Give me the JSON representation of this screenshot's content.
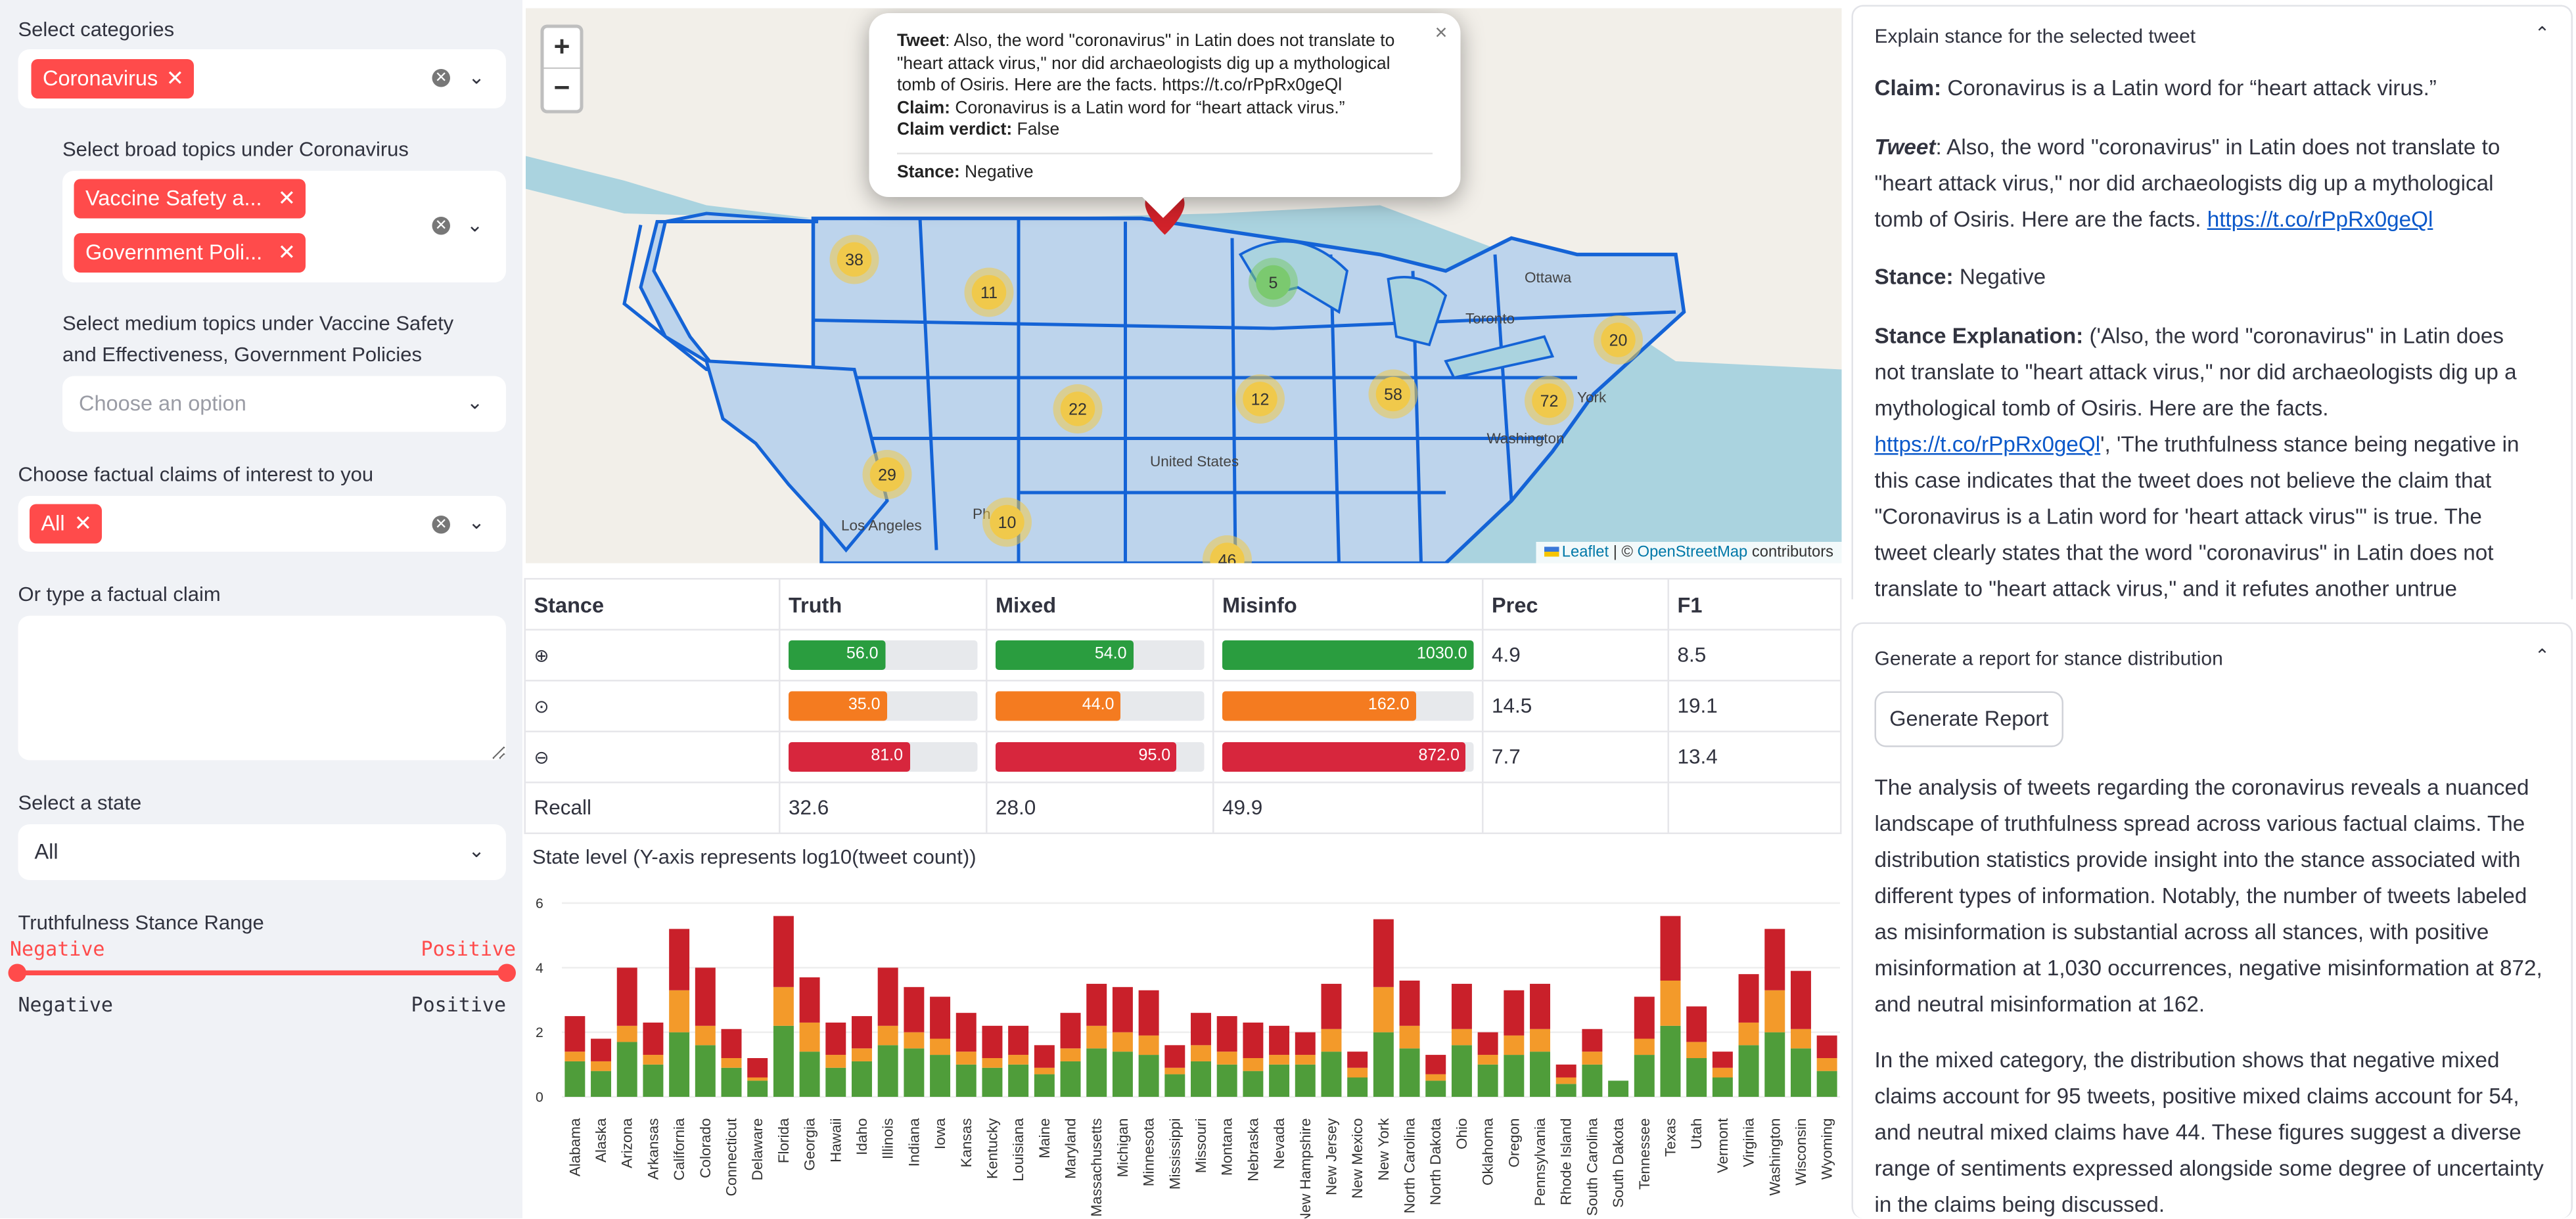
{
  "sidebar": {
    "categories_label": "Select categories",
    "categories_tags": [
      "Coronavirus"
    ],
    "broad_label": "Select broad topics under Coronavirus",
    "broad_tags": [
      "Vaccine Safety a...",
      "Government Poli..."
    ],
    "medium_label": "Select medium topics under Vaccine Safety and Effectiveness, Government Policies",
    "medium_placeholder": "Choose an option",
    "claims_label": "Choose factual claims of interest to you",
    "claims_tags": [
      "All"
    ],
    "type_claim_label": "Or type a factual claim",
    "type_claim_value": "",
    "state_label": "Select a state",
    "state_value": "All",
    "range_label": "Truthfulness Stance Range",
    "range_low_value": "Negative",
    "range_high_value": "Positive",
    "range_min_label": "Negative",
    "range_max_label": "Positive",
    "accent": "#ff4b4b"
  },
  "map": {
    "zoom_in": "+",
    "zoom_out": "−",
    "popup": {
      "tweet_key": "Tweet",
      "tweet": ": Also, the word \"coronavirus\" in Latin does not translate to \"heart attack virus,\" nor did archaeologists dig up a mythological tomb of Osiris. Here are the facts. https://t.co/rPpRx0geQl",
      "claim_key": "Claim:",
      "claim": " Coronavirus is a Latin word for “heart attack virus.”",
      "verdict_key": "Claim verdict:",
      "verdict": " False",
      "stance_key": "Stance:",
      "stance": " Negative",
      "close": "×"
    },
    "clusters": [
      {
        "label": "38",
        "color": "#f0c94b"
      },
      {
        "label": "11",
        "color": "#f0c94b"
      },
      {
        "label": "5",
        "color": "#7bc96f"
      },
      {
        "label": "22",
        "color": "#f0c94b"
      },
      {
        "label": "12",
        "color": "#f0c94b"
      },
      {
        "label": "58",
        "color": "#f0c94b"
      },
      {
        "label": "72",
        "color": "#f0c94b"
      },
      {
        "label": "20",
        "color": "#f0c94b"
      },
      {
        "label": "29",
        "color": "#f0c94b"
      },
      {
        "label": "10",
        "color": "#f0c94b"
      },
      {
        "label": "46",
        "color": "#f0c94b"
      }
    ],
    "place_labels": [
      "Ottawa",
      "Toronto",
      "United States",
      "Los Angeles",
      "Washington",
      "York",
      "Ph"
    ],
    "attribution": {
      "leaflet": "Leaflet",
      "sep": " | © ",
      "osm": "OpenStreetMap",
      "suffix": " contributors"
    }
  },
  "stance_table": {
    "headers": [
      "Stance",
      "Truth",
      "Mixed",
      "Misinfo",
      "Prec",
      "F1"
    ],
    "rows": [
      {
        "icon": "⊕",
        "cells": [
          {
            "value": "56.0",
            "fraction": 0.51,
            "color": "#2a9d3f"
          },
          {
            "value": "54.0",
            "fraction": 0.66,
            "color": "#2a9d3f"
          },
          {
            "value": "1030.0",
            "fraction": 1.0,
            "color": "#2a9d3f"
          }
        ],
        "prec": "4.9",
        "f1": "8.5"
      },
      {
        "icon": "⊙",
        "cells": [
          {
            "value": "35.0",
            "fraction": 0.52,
            "color": "#f47b20"
          },
          {
            "value": "44.0",
            "fraction": 0.6,
            "color": "#f47b20"
          },
          {
            "value": "162.0",
            "fraction": 0.77,
            "color": "#f47b20"
          }
        ],
        "prec": "14.5",
        "f1": "19.1"
      },
      {
        "icon": "⊖",
        "cells": [
          {
            "value": "81.0",
            "fraction": 0.64,
            "color": "#d7263d"
          },
          {
            "value": "95.0",
            "fraction": 0.87,
            "color": "#d7263d"
          },
          {
            "value": "872.0",
            "fraction": 0.97,
            "color": "#d7263d"
          }
        ],
        "prec": "7.7",
        "f1": "13.4"
      }
    ],
    "recall_label": "Recall",
    "recall": [
      "32.6",
      "28.0",
      "49.9"
    ]
  },
  "chart_data": {
    "type": "bar",
    "title": "State level (Y-axis represents log10(tweet count))",
    "ylim": [
      0,
      6
    ],
    "yticks": [
      "0",
      "2",
      "4",
      "6"
    ],
    "categories": [
      "Alabama",
      "Alaska",
      "Arizona",
      "Arkansas",
      "California",
      "Colorado",
      "Connecticut",
      "Delaware",
      "Florida",
      "Georgia",
      "Hawaii",
      "Idaho",
      "Illinois",
      "Indiana",
      "Iowa",
      "Kansas",
      "Kentucky",
      "Louisiana",
      "Maine",
      "Maryland",
      "Massachusetts",
      "Michigan",
      "Minnesota",
      "Mississippi",
      "Missouri",
      "Montana",
      "Nebraska",
      "Nevada",
      "New Hampshire",
      "New Jersey",
      "New Mexico",
      "New York",
      "North Carolina",
      "North Dakota",
      "Ohio",
      "Oklahoma",
      "Oregon",
      "Pennsylvania",
      "Rhode Island",
      "South Carolina",
      "South Dakota",
      "Tennessee",
      "Texas",
      "Utah",
      "Vermont",
      "Virginia",
      "Washington",
      "Wisconsin",
      "Wyoming"
    ],
    "series": [
      {
        "color": "#4f9d3a",
        "values": [
          1.1,
          0.8,
          1.7,
          1.0,
          2.0,
          1.6,
          0.9,
          0.5,
          2.2,
          1.4,
          0.9,
          1.1,
          1.6,
          1.5,
          1.3,
          1.0,
          0.9,
          1.0,
          0.7,
          1.1,
          1.5,
          1.4,
          1.3,
          0.7,
          1.1,
          1.0,
          0.8,
          1.0,
          1.0,
          1.4,
          0.6,
          2.0,
          1.5,
          0.5,
          1.6,
          1.0,
          1.3,
          1.4,
          0.4,
          1.0,
          0.5,
          1.3,
          2.2,
          1.2,
          0.6,
          1.6,
          2.0,
          1.5,
          0.8
        ]
      },
      {
        "color": "#f39a2a",
        "values": [
          0.3,
          0.3,
          0.5,
          0.3,
          1.3,
          0.6,
          0.3,
          0.1,
          1.2,
          0.9,
          0.4,
          0.4,
          0.6,
          0.5,
          0.5,
          0.4,
          0.3,
          0.3,
          0.2,
          0.4,
          0.7,
          0.6,
          0.6,
          0.2,
          0.5,
          0.4,
          0.4,
          0.3,
          0.3,
          0.7,
          0.3,
          1.4,
          0.7,
          0.2,
          0.5,
          0.3,
          0.6,
          0.7,
          0.2,
          0.4,
          0.0,
          0.5,
          1.4,
          0.5,
          0.3,
          0.7,
          1.3,
          0.6,
          0.4
        ]
      },
      {
        "color": "#c9202a",
        "values": [
          1.1,
          0.7,
          1.8,
          1.0,
          1.9,
          1.8,
          0.9,
          0.6,
          2.2,
          1.4,
          1.0,
          1.0,
          1.8,
          1.4,
          1.3,
          1.2,
          1.0,
          0.9,
          0.7,
          1.1,
          1.3,
          1.4,
          1.4,
          0.7,
          1.0,
          1.1,
          1.1,
          0.9,
          0.7,
          1.4,
          0.5,
          2.1,
          1.4,
          0.6,
          1.4,
          0.7,
          1.4,
          1.4,
          0.4,
          0.7,
          0.0,
          1.3,
          2.0,
          1.1,
          0.5,
          1.5,
          1.9,
          1.8,
          0.7
        ]
      }
    ]
  },
  "explain": {
    "header": "Explain stance for the selected tweet",
    "caret": "⌃",
    "claim_key": "Claim:",
    "claim": " Coronavirus is a Latin word for “heart attack virus.”",
    "tweet_key": "Tweet",
    "tweet": ": Also, the word \"coronavirus\" in Latin does not translate to \"heart attack virus,\" nor did archaeologists dig up a mythological tomb of Osiris. Here are the facts. ",
    "tweet_link": "https://t.co/rPpRx0geQl",
    "stance_key": "Stance:",
    "stance": " Negative",
    "expl_key": "Stance Explanation:",
    "expl_1": " ('Also, the word \"coronavirus\" in Latin does not translate to \"heart attack virus,\" nor did archaeologists dig up a mythological tomb of Osiris. Here are the facts. ",
    "expl_link": "https://t.co/rPpRx0geQl",
    "expl_2": "', 'The truthfulness stance being negative in this case indicates that the tweet does not believe the claim that \"Coronavirus is a Latin word for 'heart attack virus'\" is true. The tweet clearly states that the word \"coronavirus\" in Latin does not translate to \"heart attack virus,\" and it refutes another untrue"
  },
  "report": {
    "header": "Generate a report for stance distribution",
    "caret": "⌃",
    "button": "Generate Report",
    "para1": "The analysis of tweets regarding the coronavirus reveals a nuanced landscape of truthfulness spread across various factual claims. The distribution statistics provide insight into the stance associated with different types of information. Notably, the number of tweets labeled as misinformation is substantial across all stances, with positive misinformation at 1,030 occurrences, negative misinformation at 872, and neutral misinformation at 162.",
    "para2": "In the mixed category, the distribution shows that negative mixed claims account for 95 tweets, positive mixed claims account for 54, and neutral mixed claims have 44. These figures suggest a diverse range of sentiments expressed alongside some degree of uncertainty in the claims being discussed."
  }
}
